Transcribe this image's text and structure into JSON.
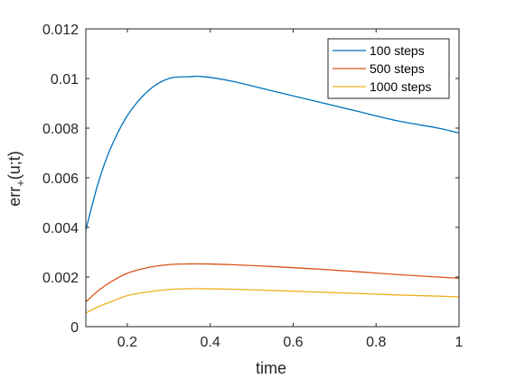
{
  "chart_data": {
    "type": "line",
    "xlabel": "time",
    "ylabel": "err",
    "ylabel_sub": "+",
    "ylabel_suffix": "(u;t)",
    "xlim": [
      0.1,
      1
    ],
    "ylim": [
      0,
      0.012
    ],
    "xticks": [
      0.2,
      0.4,
      0.6,
      0.8,
      1
    ],
    "xtick_labels": [
      "0.2",
      "0.4",
      "0.6",
      "0.8",
      "1"
    ],
    "yticks": [
      0,
      0.002,
      0.004,
      0.006,
      0.008,
      0.01,
      0.012
    ],
    "ytick_labels": [
      "0",
      "0.002",
      "0.004",
      "0.006",
      "0.008",
      "0.01",
      "0.012"
    ],
    "grid": false,
    "legend_position": "top-right",
    "x": [
      0.1,
      0.13,
      0.16,
      0.2,
      0.25,
      0.3,
      0.35,
      0.38,
      0.45,
      0.55,
      0.65,
      0.75,
      0.85,
      0.95,
      1.0
    ],
    "series": [
      {
        "name": "100 steps",
        "color": "#0072BD",
        "values": [
          0.0039,
          0.0058,
          0.0072,
          0.0085,
          0.0095,
          0.01,
          0.01007,
          0.01008,
          0.0099,
          0.0095,
          0.0091,
          0.0087,
          0.0083,
          0.008,
          0.0078
        ]
      },
      {
        "name": "500 steps",
        "color": "#D95319",
        "values": [
          0.001,
          0.00145,
          0.0018,
          0.00215,
          0.00238,
          0.0025,
          0.00253,
          0.00253,
          0.0025,
          0.00242,
          0.00233,
          0.00222,
          0.0021,
          0.002,
          0.00195
        ]
      },
      {
        "name": "1000 steps",
        "color": "#EDB120",
        "values": [
          0.00055,
          0.0008,
          0.001,
          0.00125,
          0.0014,
          0.0015,
          0.00153,
          0.00153,
          0.00151,
          0.00146,
          0.0014,
          0.00134,
          0.00128,
          0.00123,
          0.0012
        ]
      }
    ]
  }
}
